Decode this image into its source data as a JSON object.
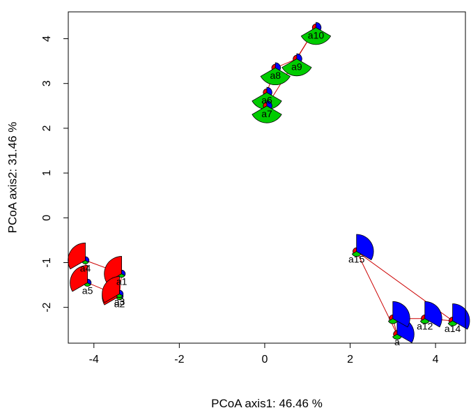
{
  "chart_data": {
    "type": "scatter",
    "title": "",
    "xlabel": "PCoA axis1: 46.46 %",
    "ylabel": "PCoA axis2: 31.46 %",
    "xlim": [
      -4.6,
      4.7
    ],
    "ylim": [
      -2.8,
      4.6
    ],
    "xticks": [
      -4,
      -2,
      0,
      2,
      4
    ],
    "yticks": [
      -2,
      -1,
      0,
      1,
      2,
      3,
      4
    ],
    "grid": false,
    "legend": "none",
    "point_colors": [
      "#ff0000",
      "#00cc00",
      "#0000ff"
    ],
    "line_color": "#cc0000",
    "points": [
      {
        "label": "a1",
        "x": -3.35,
        "y": -1.25,
        "comp": [
          0.92,
          0.04,
          0.04
        ]
      },
      {
        "label": "a2",
        "x": -3.4,
        "y": -1.75,
        "comp": [
          0.92,
          0.04,
          0.04
        ]
      },
      {
        "label": "a3",
        "x": -3.4,
        "y": -1.7,
        "comp": [
          0.92,
          0.04,
          0.04
        ]
      },
      {
        "label": "a4",
        "x": -4.2,
        "y": -0.95,
        "comp": [
          0.92,
          0.04,
          0.04
        ]
      },
      {
        "label": "a5",
        "x": -4.15,
        "y": -1.45,
        "comp": [
          0.92,
          0.04,
          0.04
        ]
      },
      {
        "label": "a6",
        "x": 0.05,
        "y": 2.8,
        "comp": [
          0.04,
          0.88,
          0.08
        ]
      },
      {
        "label": "a7",
        "x": 0.05,
        "y": 2.5,
        "comp": [
          0.04,
          0.88,
          0.08
        ]
      },
      {
        "label": "a8",
        "x": 0.25,
        "y": 3.35,
        "comp": [
          0.04,
          0.88,
          0.08
        ]
      },
      {
        "label": "a9",
        "x": 0.75,
        "y": 3.55,
        "comp": [
          0.04,
          0.88,
          0.08
        ]
      },
      {
        "label": "a10",
        "x": 1.2,
        "y": 4.25,
        "comp": [
          0.04,
          0.88,
          0.08
        ]
      },
      {
        "label": "a",
        "x": 3.1,
        "y": -2.6,
        "comp": [
          0.04,
          0.08,
          0.88
        ]
      },
      {
        "label": "",
        "x": 3.0,
        "y": -2.25,
        "comp": [
          0.04,
          0.08,
          0.88
        ]
      },
      {
        "label": "a12",
        "x": 3.75,
        "y": -2.25,
        "comp": [
          0.04,
          0.08,
          0.88
        ]
      },
      {
        "label": "a14",
        "x": 4.4,
        "y": -2.3,
        "comp": [
          0.04,
          0.08,
          0.88
        ]
      },
      {
        "label": "a15",
        "x": 2.15,
        "y": -0.75,
        "comp": [
          0.04,
          0.08,
          0.88
        ]
      }
    ]
  }
}
